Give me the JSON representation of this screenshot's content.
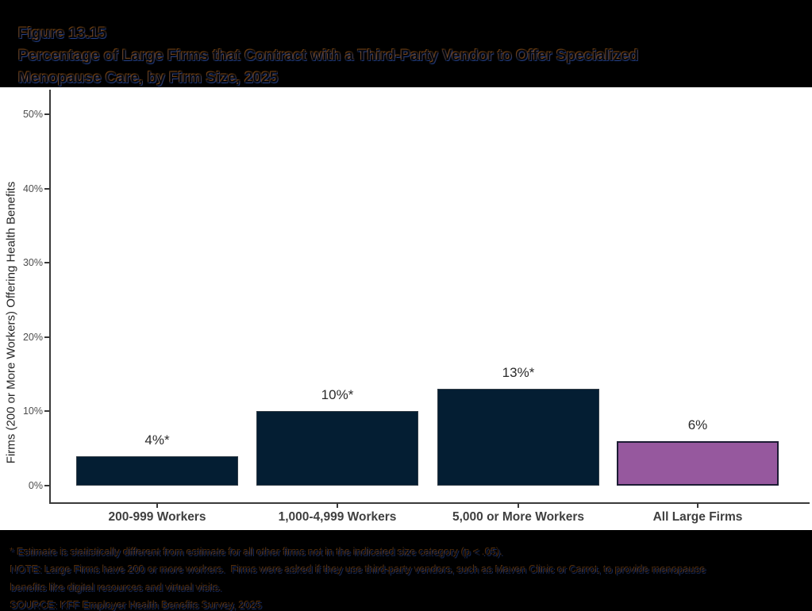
{
  "header": {
    "figure_label": "Figure 13.15",
    "title_line1": "Percentage of Large Firms that Contract with a Third-Party Vendor to Offer Specialized",
    "title_line2": "Menopause Care, by Firm Size, 2025"
  },
  "chart_data": {
    "type": "bar",
    "title": "Percentage of Large Firms that Contract with a Third-Party Vendor to Offer Specialized Menopause Care, by Firm Size, 2025",
    "figure_number": "Figure 13.15",
    "categories": [
      "200-999 Workers",
      "1,000-4,999 Workers",
      "5,000 or More Workers",
      "All Large Firms"
    ],
    "values": [
      4,
      10,
      13,
      6
    ],
    "value_labels": [
      "4%*",
      "10%*",
      "13%*",
      "6%"
    ],
    "bar_fill_colors": [
      "#041e33",
      "#041e33",
      "#041e33",
      "#96589e"
    ],
    "bar_border_colors": [
      "#303b45",
      "#303b45",
      "#303b45",
      "#1c1c34"
    ],
    "xlabel": "",
    "ylabel": "Firms (200 or More Workers) Offering Health Benefits",
    "ylim": [
      0,
      52
    ],
    "yticks": [
      0,
      10,
      20,
      30,
      40,
      50
    ],
    "ytick_labels": [
      "0%",
      "10%",
      "20%",
      "30%",
      "40%",
      "50%"
    ],
    "grid": false,
    "legend": false
  },
  "footnotes": {
    "line1": "* Estimate is statistically different from estimate for all other firms not in the indicated size category (p < .05).",
    "line2": "NOTE: Large Firms have 200 or more workers.  Firms were asked if they use third-party vendors, such as Maven Clinic or Carrot, to provide menopause",
    "line3": "benefits like digital resources and virtual visits.",
    "line4": "SOURCE: KFF Employer Health Benefits Survey, 2025"
  },
  "colors": {
    "navy": "#041e33",
    "purple": "#96589e",
    "axis": "#3a3a3a",
    "tick_label": "#4d4d4d",
    "category_label": "#3f3f3f",
    "value_label": "#2b2b2b",
    "band_background": "#000000",
    "panel_background": "#ffffff"
  }
}
